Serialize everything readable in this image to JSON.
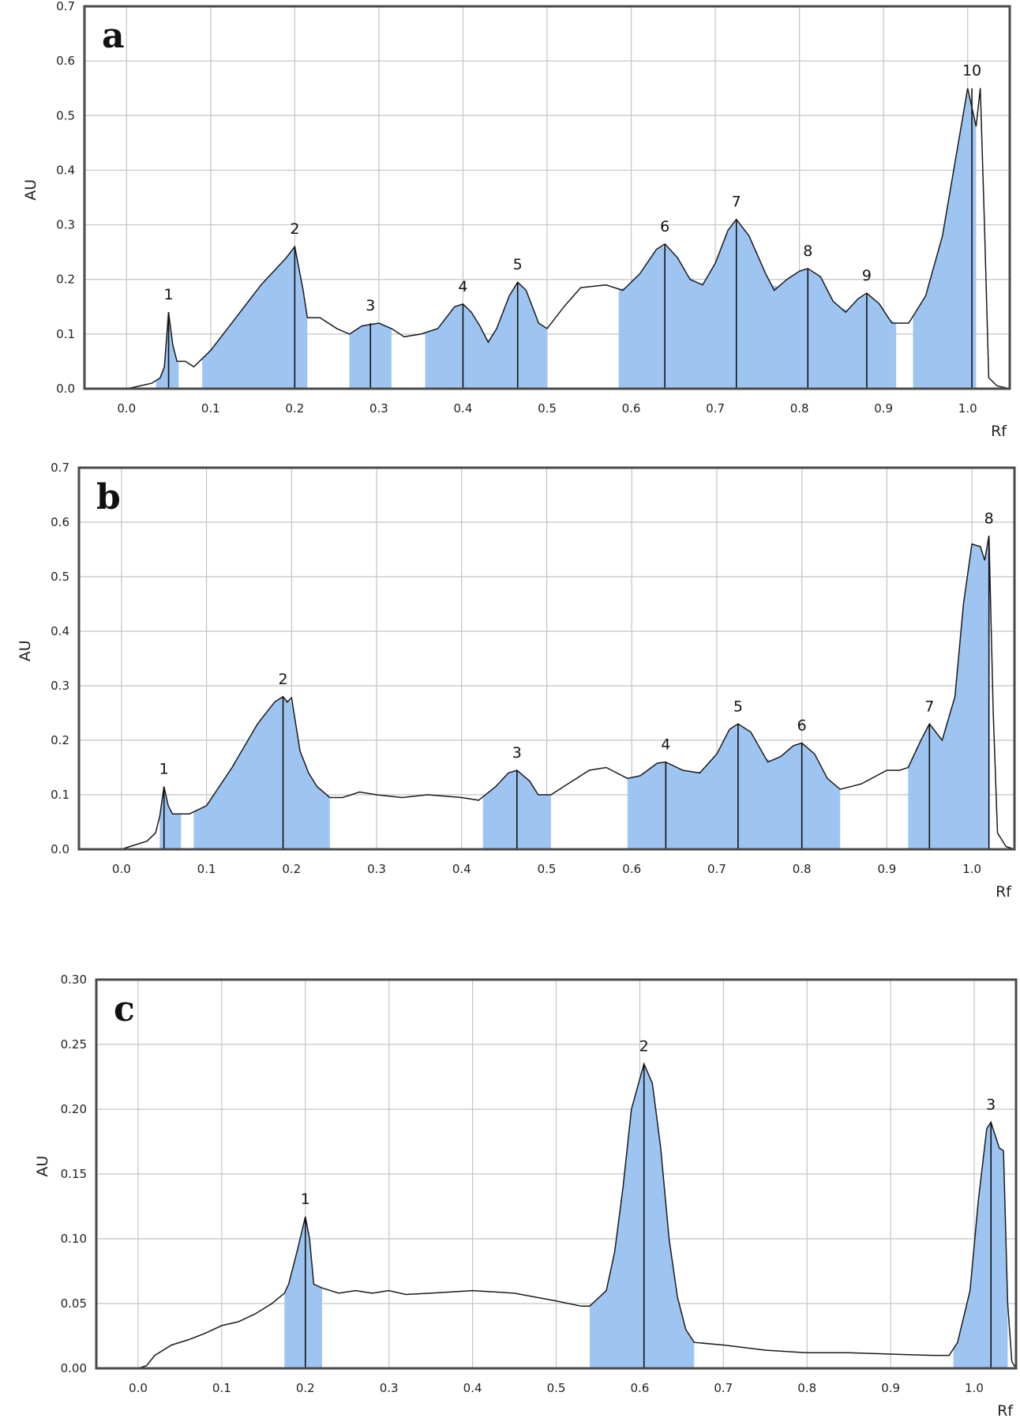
{
  "chart_data": [
    {
      "panel": "a",
      "type": "area",
      "xlabel": "Rf",
      "ylabel": "AU",
      "xlim": [
        -0.05,
        1.05
      ],
      "ylim": [
        0,
        0.7
      ],
      "xticks": [
        "0.0",
        "0.1",
        "0.2",
        "0.3",
        "0.4",
        "0.5",
        "0.6",
        "0.7",
        "0.8",
        "0.9",
        "1.0"
      ],
      "yticks": [
        "0.0",
        "0.1",
        "0.2",
        "0.3",
        "0.4",
        "0.5",
        "0.6",
        "0.7"
      ],
      "grid": true,
      "fill_color": "#9ec5f2",
      "peaks": [
        {
          "label": "1",
          "rf": 0.05,
          "au": 0.14
        },
        {
          "label": "2",
          "rf": 0.2,
          "au": 0.26
        },
        {
          "label": "3",
          "rf": 0.29,
          "au": 0.12
        },
        {
          "label": "4",
          "rf": 0.4,
          "au": 0.155
        },
        {
          "label": "5",
          "rf": 0.465,
          "au": 0.195
        },
        {
          "label": "6",
          "rf": 0.64,
          "au": 0.265
        },
        {
          "label": "7",
          "rf": 0.725,
          "au": 0.31
        },
        {
          "label": "8",
          "rf": 0.81,
          "au": 0.22
        },
        {
          "label": "9",
          "rf": 0.88,
          "au": 0.175
        },
        {
          "label": "10",
          "rf": 1.005,
          "au": 0.55
        }
      ],
      "bands": [
        [
          0.035,
          0.062
        ],
        [
          0.09,
          0.215
        ],
        [
          0.265,
          0.315
        ],
        [
          0.355,
          0.5
        ],
        [
          0.585,
          0.915
        ],
        [
          0.935,
          1.01
        ]
      ],
      "trace": [
        [
          -0.05,
          0
        ],
        [
          0.0,
          0.0
        ],
        [
          0.01,
          0.003
        ],
        [
          0.03,
          0.01
        ],
        [
          0.04,
          0.02
        ],
        [
          0.045,
          0.04
        ],
        [
          0.05,
          0.14
        ],
        [
          0.055,
          0.08
        ],
        [
          0.06,
          0.05
        ],
        [
          0.07,
          0.05
        ],
        [
          0.08,
          0.04
        ],
        [
          0.1,
          0.07
        ],
        [
          0.13,
          0.13
        ],
        [
          0.16,
          0.19
        ],
        [
          0.19,
          0.24
        ],
        [
          0.2,
          0.26
        ],
        [
          0.21,
          0.18
        ],
        [
          0.215,
          0.13
        ],
        [
          0.23,
          0.13
        ],
        [
          0.25,
          0.11
        ],
        [
          0.265,
          0.1
        ],
        [
          0.28,
          0.115
        ],
        [
          0.3,
          0.12
        ],
        [
          0.315,
          0.11
        ],
        [
          0.33,
          0.095
        ],
        [
          0.35,
          0.1
        ],
        [
          0.37,
          0.11
        ],
        [
          0.39,
          0.15
        ],
        [
          0.4,
          0.155
        ],
        [
          0.41,
          0.14
        ],
        [
          0.42,
          0.115
        ],
        [
          0.43,
          0.085
        ],
        [
          0.44,
          0.11
        ],
        [
          0.455,
          0.17
        ],
        [
          0.465,
          0.195
        ],
        [
          0.475,
          0.18
        ],
        [
          0.49,
          0.12
        ],
        [
          0.5,
          0.11
        ],
        [
          0.52,
          0.15
        ],
        [
          0.54,
          0.185
        ],
        [
          0.57,
          0.19
        ],
        [
          0.59,
          0.18
        ],
        [
          0.61,
          0.21
        ],
        [
          0.63,
          0.255
        ],
        [
          0.64,
          0.265
        ],
        [
          0.655,
          0.24
        ],
        [
          0.67,
          0.2
        ],
        [
          0.685,
          0.19
        ],
        [
          0.7,
          0.23
        ],
        [
          0.715,
          0.29
        ],
        [
          0.725,
          0.31
        ],
        [
          0.74,
          0.28
        ],
        [
          0.76,
          0.21
        ],
        [
          0.77,
          0.18
        ],
        [
          0.785,
          0.2
        ],
        [
          0.8,
          0.215
        ],
        [
          0.81,
          0.22
        ],
        [
          0.825,
          0.205
        ],
        [
          0.84,
          0.16
        ],
        [
          0.855,
          0.14
        ],
        [
          0.87,
          0.165
        ],
        [
          0.88,
          0.175
        ],
        [
          0.895,
          0.155
        ],
        [
          0.91,
          0.12
        ],
        [
          0.93,
          0.12
        ],
        [
          0.95,
          0.17
        ],
        [
          0.97,
          0.28
        ],
        [
          0.99,
          0.46
        ],
        [
          1.0,
          0.55
        ],
        [
          1.01,
          0.48
        ],
        [
          1.015,
          0.55
        ],
        [
          1.02,
          0.3
        ],
        [
          1.025,
          0.02
        ],
        [
          1.035,
          0.005
        ],
        [
          1.05,
          0.0
        ]
      ]
    },
    {
      "panel": "b",
      "type": "area",
      "xlabel": "Rf",
      "ylabel": "AU",
      "xlim": [
        -0.05,
        1.05
      ],
      "ylim": [
        0,
        0.7
      ],
      "xticks": [
        "0.0",
        "0.1",
        "0.2",
        "0.3",
        "0.4",
        "0.5",
        "0.6",
        "0.7",
        "0.8",
        "0.9",
        "1.0"
      ],
      "yticks": [
        "0.0",
        "0.1",
        "0.2",
        "0.3",
        "0.4",
        "0.5",
        "0.6",
        "0.7"
      ],
      "grid": true,
      "fill_color": "#9ec5f2",
      "peaks": [
        {
          "label": "1",
          "rf": 0.05,
          "au": 0.115
        },
        {
          "label": "2",
          "rf": 0.19,
          "au": 0.28
        },
        {
          "label": "3",
          "rf": 0.465,
          "au": 0.145
        },
        {
          "label": "4",
          "rf": 0.64,
          "au": 0.16
        },
        {
          "label": "5",
          "rf": 0.725,
          "au": 0.23
        },
        {
          "label": "6",
          "rf": 0.8,
          "au": 0.195
        },
        {
          "label": "7",
          "rf": 0.95,
          "au": 0.23
        },
        {
          "label": "8",
          "rf": 1.02,
          "au": 0.575
        }
      ],
      "bands": [
        [
          0.045,
          0.07
        ],
        [
          0.085,
          0.245
        ],
        [
          0.425,
          0.505
        ],
        [
          0.595,
          0.845
        ],
        [
          0.925,
          1.02
        ]
      ],
      "trace": [
        [
          -0.05,
          0
        ],
        [
          0.0,
          0.0
        ],
        [
          0.01,
          0.005
        ],
        [
          0.03,
          0.015
        ],
        [
          0.04,
          0.03
        ],
        [
          0.045,
          0.06
        ],
        [
          0.05,
          0.115
        ],
        [
          0.055,
          0.08
        ],
        [
          0.06,
          0.065
        ],
        [
          0.07,
          0.065
        ],
        [
          0.08,
          0.065
        ],
        [
          0.1,
          0.08
        ],
        [
          0.13,
          0.15
        ],
        [
          0.16,
          0.23
        ],
        [
          0.18,
          0.27
        ],
        [
          0.19,
          0.28
        ],
        [
          0.195,
          0.27
        ],
        [
          0.2,
          0.278
        ],
        [
          0.21,
          0.18
        ],
        [
          0.22,
          0.14
        ],
        [
          0.23,
          0.115
        ],
        [
          0.245,
          0.095
        ],
        [
          0.26,
          0.095
        ],
        [
          0.28,
          0.105
        ],
        [
          0.3,
          0.1
        ],
        [
          0.33,
          0.095
        ],
        [
          0.36,
          0.1
        ],
        [
          0.4,
          0.095
        ],
        [
          0.42,
          0.09
        ],
        [
          0.44,
          0.115
        ],
        [
          0.455,
          0.14
        ],
        [
          0.465,
          0.145
        ],
        [
          0.48,
          0.125
        ],
        [
          0.49,
          0.1
        ],
        [
          0.505,
          0.1
        ],
        [
          0.52,
          0.115
        ],
        [
          0.55,
          0.145
        ],
        [
          0.57,
          0.15
        ],
        [
          0.595,
          0.13
        ],
        [
          0.61,
          0.135
        ],
        [
          0.63,
          0.158
        ],
        [
          0.64,
          0.16
        ],
        [
          0.66,
          0.145
        ],
        [
          0.68,
          0.14
        ],
        [
          0.7,
          0.175
        ],
        [
          0.715,
          0.22
        ],
        [
          0.725,
          0.23
        ],
        [
          0.74,
          0.215
        ],
        [
          0.76,
          0.16
        ],
        [
          0.775,
          0.17
        ],
        [
          0.79,
          0.19
        ],
        [
          0.8,
          0.195
        ],
        [
          0.815,
          0.175
        ],
        [
          0.83,
          0.13
        ],
        [
          0.845,
          0.11
        ],
        [
          0.87,
          0.12
        ],
        [
          0.9,
          0.145
        ],
        [
          0.915,
          0.145
        ],
        [
          0.925,
          0.15
        ],
        [
          0.94,
          0.2
        ],
        [
          0.95,
          0.23
        ],
        [
          0.965,
          0.2
        ],
        [
          0.98,
          0.28
        ],
        [
          0.99,
          0.45
        ],
        [
          1.0,
          0.56
        ],
        [
          1.01,
          0.555
        ],
        [
          1.015,
          0.53
        ],
        [
          1.02,
          0.575
        ],
        [
          1.025,
          0.25
        ],
        [
          1.03,
          0.03
        ],
        [
          1.04,
          0.005
        ],
        [
          1.05,
          0.0
        ]
      ]
    },
    {
      "panel": "c",
      "type": "area",
      "xlabel": "Rf",
      "ylabel": "AU",
      "xlim": [
        -0.05,
        1.05
      ],
      "ylim": [
        0,
        0.3
      ],
      "xticks": [
        "0.0",
        "0.1",
        "0.2",
        "0.3",
        "0.4",
        "0.5",
        "0.6",
        "0.7",
        "0.8",
        "0.9",
        "1.0"
      ],
      "yticks": [
        "0.00",
        "0.05",
        "0.10",
        "0.15",
        "0.20",
        "0.25",
        "0.30"
      ],
      "grid": true,
      "fill_color": "#9ec5f2",
      "peaks": [
        {
          "label": "1",
          "rf": 0.2,
          "au": 0.117
        },
        {
          "label": "2",
          "rf": 0.605,
          "au": 0.235
        },
        {
          "label": "3",
          "rf": 1.02,
          "au": 0.19
        }
      ],
      "bands": [
        [
          0.175,
          0.22
        ],
        [
          0.54,
          0.665
        ],
        [
          0.975,
          1.04
        ]
      ],
      "trace": [
        [
          -0.05,
          0
        ],
        [
          0.0,
          0.0
        ],
        [
          0.01,
          0.002
        ],
        [
          0.02,
          0.01
        ],
        [
          0.04,
          0.018
        ],
        [
          0.06,
          0.022
        ],
        [
          0.08,
          0.027
        ],
        [
          0.1,
          0.033
        ],
        [
          0.12,
          0.036
        ],
        [
          0.14,
          0.042
        ],
        [
          0.16,
          0.05
        ],
        [
          0.175,
          0.058
        ],
        [
          0.18,
          0.065
        ],
        [
          0.19,
          0.09
        ],
        [
          0.2,
          0.117
        ],
        [
          0.205,
          0.1
        ],
        [
          0.21,
          0.065
        ],
        [
          0.22,
          0.062
        ],
        [
          0.24,
          0.058
        ],
        [
          0.26,
          0.06
        ],
        [
          0.28,
          0.058
        ],
        [
          0.3,
          0.06
        ],
        [
          0.32,
          0.057
        ],
        [
          0.35,
          0.058
        ],
        [
          0.4,
          0.06
        ],
        [
          0.45,
          0.058
        ],
        [
          0.5,
          0.052
        ],
        [
          0.53,
          0.048
        ],
        [
          0.54,
          0.048
        ],
        [
          0.56,
          0.06
        ],
        [
          0.57,
          0.09
        ],
        [
          0.58,
          0.14
        ],
        [
          0.59,
          0.2
        ],
        [
          0.605,
          0.235
        ],
        [
          0.615,
          0.22
        ],
        [
          0.625,
          0.17
        ],
        [
          0.635,
          0.1
        ],
        [
          0.645,
          0.055
        ],
        [
          0.655,
          0.03
        ],
        [
          0.665,
          0.02
        ],
        [
          0.7,
          0.018
        ],
        [
          0.75,
          0.014
        ],
        [
          0.8,
          0.012
        ],
        [
          0.85,
          0.012
        ],
        [
          0.9,
          0.011
        ],
        [
          0.95,
          0.01
        ],
        [
          0.97,
          0.01
        ],
        [
          0.98,
          0.02
        ],
        [
          0.995,
          0.06
        ],
        [
          1.005,
          0.13
        ],
        [
          1.015,
          0.185
        ],
        [
          1.02,
          0.19
        ],
        [
          1.025,
          0.18
        ],
        [
          1.03,
          0.17
        ],
        [
          1.035,
          0.168
        ],
        [
          1.04,
          0.05
        ],
        [
          1.045,
          0.005
        ],
        [
          1.05,
          0.0
        ]
      ]
    }
  ]
}
